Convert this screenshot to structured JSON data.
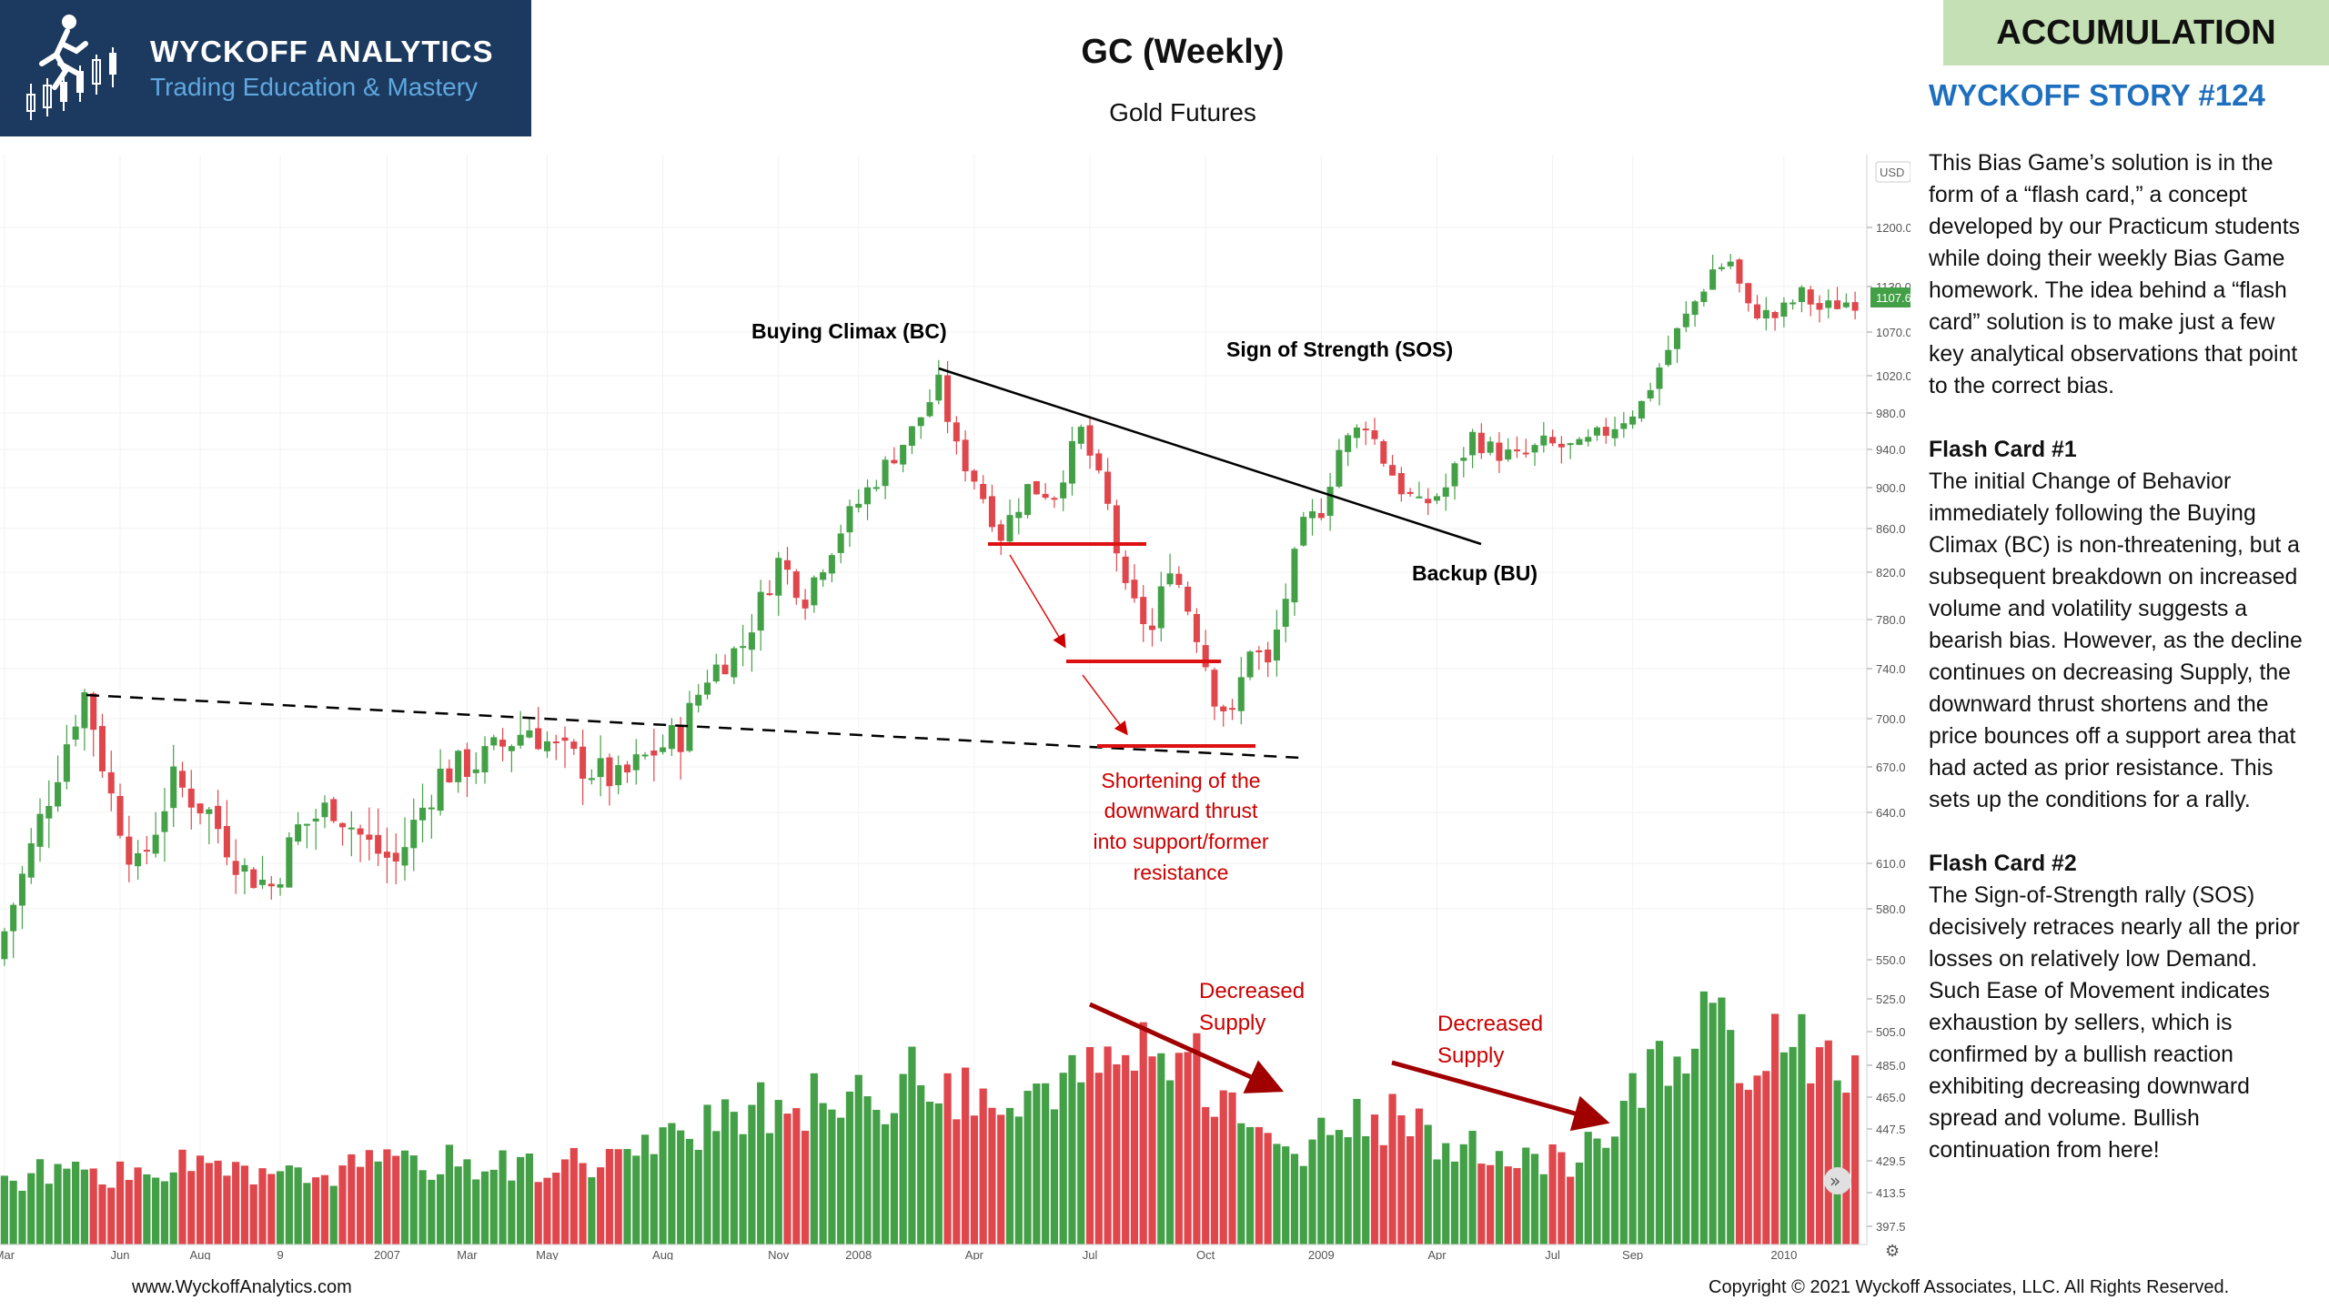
{
  "header": {
    "brand": "WYCKOFF ANALYTICS",
    "tagline": "Trading Education & Mastery",
    "title": "GC (Weekly)",
    "subtitle": "Gold Futures",
    "badge": "ACCUMULATION",
    "story": "WYCKOFF STORY #124"
  },
  "panel": {
    "intro": "This Bias Game’s solution is in the form of a “flash card,” a concept developed by our Practicum students while doing their weekly Bias Game homework. The idea behind a “flash card” solution is to make just a few key analytical observations that point to the correct bias.",
    "card1_title": "Flash Card #1",
    "card1": "The initial Change of Behavior immediately following the Buying Climax (BC) is non-threatening, but a subsequent breakdown on increased volume and volatility suggests a bearish bias. However, as the decline continues on decreasing Supply, the downward thrust shortens and the price bounces off a support area that had acted as prior resistance. This sets up the conditions for a rally.",
    "card2_title": "Flash Card #2",
    "card2": "The Sign-of-Strength rally (SOS) decisively retraces nearly all the prior losses on relatively low Demand. Such Ease of Movement indicates exhaustion by sellers, which is confirmed by a bullish reaction exhibiting decreasing downward spread and volume. Bullish continuation from here!"
  },
  "footer": {
    "website": "www.WyckoffAnalytics.com",
    "copyright": "Copyright © 2021 Wyckoff Associates, LLC. All Rights Reserved."
  },
  "colors": {
    "up": "#43a047",
    "down": "#e0474c",
    "annotation": "#cc0000",
    "logo_bg": "#1c3a5f",
    "badge_bg": "#c5e0b4",
    "story": "#1f6fbf"
  },
  "chart_data": {
    "type": "candlestick",
    "currency": "USD",
    "last_price_label": "1107.6",
    "y_ticks": [
      1200.0,
      1130.0,
      1070.0,
      1020.0,
      980.0,
      940.0,
      900.0,
      860.0,
      820.0,
      780.0,
      740.0,
      700.0,
      670.0,
      640.0,
      610.0,
      580.0,
      550.0,
      525.0,
      505.0,
      485.0,
      465.0,
      447.5,
      429.5,
      413.5,
      397.5
    ],
    "y_tick_labels": [
      "1200.0",
      "1130.0",
      "1070.0",
      "1020.0",
      "980.0",
      "940.0",
      "900.0",
      "860.0",
      "820.0",
      "780.0",
      "740.0",
      "700.0",
      "670.0",
      "640.0",
      "610.0",
      "580.0",
      "550.0",
      "525.0",
      "505.0",
      "485.0",
      "465.0",
      "447.5",
      "429.5",
      "413.5",
      "397.5"
    ],
    "x_ticks": [
      "Mar",
      "Jun",
      "Aug",
      "9",
      "2007",
      "Mar",
      "May",
      "Aug",
      "Nov",
      "2008",
      "Apr",
      "Jul",
      "Oct",
      "2009",
      "Apr",
      "Jul",
      "Sep",
      "2010"
    ],
    "x_tick_weeks": [
      0,
      13,
      22,
      31,
      43,
      52,
      61,
      74,
      87,
      96,
      109,
      122,
      135,
      148,
      161,
      174,
      183,
      200
    ],
    "price_path": [
      [
        0,
        550
      ],
      [
        10,
        720
      ],
      [
        13,
        650
      ],
      [
        16,
        605
      ],
      [
        20,
        660
      ],
      [
        24,
        640
      ],
      [
        28,
        605
      ],
      [
        31,
        595
      ],
      [
        34,
        630
      ],
      [
        38,
        645
      ],
      [
        42,
        620
      ],
      [
        45,
        610
      ],
      [
        50,
        665
      ],
      [
        55,
        675
      ],
      [
        60,
        695
      ],
      [
        63,
        680
      ],
      [
        67,
        668
      ],
      [
        70,
        660
      ],
      [
        74,
        680
      ],
      [
        77,
        690
      ],
      [
        80,
        735
      ],
      [
        84,
        760
      ],
      [
        88,
        830
      ],
      [
        91,
        800
      ],
      [
        95,
        860
      ],
      [
        99,
        910
      ],
      [
        103,
        960
      ],
      [
        106,
        1010
      ],
      [
        108,
        940
      ],
      [
        110,
        910
      ],
      [
        113,
        855
      ],
      [
        116,
        900
      ],
      [
        119,
        895
      ],
      [
        122,
        960
      ],
      [
        125,
        880
      ],
      [
        127,
        800
      ],
      [
        130,
        770
      ],
      [
        132,
        830
      ],
      [
        135,
        770
      ],
      [
        137,
        720
      ],
      [
        139,
        700
      ],
      [
        141,
        760
      ],
      [
        143,
        740
      ],
      [
        145,
        800
      ],
      [
        147,
        860
      ],
      [
        149,
        880
      ],
      [
        151,
        940
      ],
      [
        154,
        970
      ],
      [
        156,
        930
      ],
      [
        158,
        900
      ],
      [
        160,
        880
      ],
      [
        163,
        900
      ],
      [
        166,
        955
      ],
      [
        168,
        940
      ],
      [
        171,
        930
      ],
      [
        174,
        945
      ],
      [
        178,
        940
      ],
      [
        181,
        960
      ],
      [
        185,
        990
      ],
      [
        188,
        1050
      ],
      [
        191,
        1110
      ],
      [
        193,
        1150
      ],
      [
        195,
        1160
      ],
      [
        197,
        1100
      ],
      [
        200,
        1090
      ],
      [
        203,
        1120
      ],
      [
        205,
        1100
      ],
      [
        208,
        1110
      ]
    ],
    "volume_levels": [
      [
        0,
        0.25
      ],
      [
        10,
        0.3
      ],
      [
        14,
        0.25
      ],
      [
        20,
        0.3
      ],
      [
        30,
        0.25
      ],
      [
        40,
        0.3
      ],
      [
        50,
        0.32
      ],
      [
        60,
        0.3
      ],
      [
        70,
        0.35
      ],
      [
        80,
        0.45
      ],
      [
        88,
        0.55
      ],
      [
        96,
        0.55
      ],
      [
        104,
        0.65
      ],
      [
        112,
        0.5
      ],
      [
        120,
        0.6
      ],
      [
        124,
        0.7
      ],
      [
        128,
        0.78
      ],
      [
        132,
        0.75
      ],
      [
        136,
        0.6
      ],
      [
        142,
        0.45
      ],
      [
        145,
        0.3
      ],
      [
        147,
        0.35
      ],
      [
        150,
        0.5
      ],
      [
        156,
        0.48
      ],
      [
        162,
        0.38
      ],
      [
        170,
        0.32
      ],
      [
        176,
        0.32
      ],
      [
        180,
        0.45
      ],
      [
        186,
        0.7
      ],
      [
        190,
        0.75
      ],
      [
        193,
        0.95
      ],
      [
        196,
        0.6
      ],
      [
        200,
        0.85
      ],
      [
        205,
        0.72
      ],
      [
        208,
        0.6
      ]
    ],
    "annotations": [
      {
        "label": "Buying Climax (BC)"
      },
      {
        "label": "Sign of Strength (SOS)"
      },
      {
        "label": "Backup (BU)"
      },
      {
        "label": "Shortening of the downward thrust into support/former resistance"
      },
      {
        "label": "Decreased Supply"
      },
      {
        "label": "Decreased Supply"
      }
    ]
  }
}
